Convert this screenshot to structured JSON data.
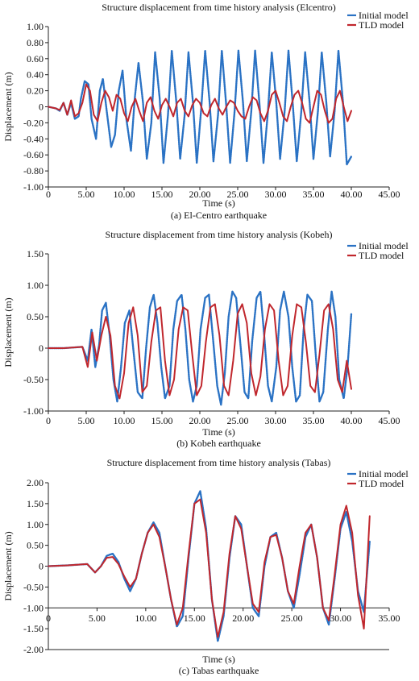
{
  "colors": {
    "initial": "#2a72c4",
    "tld": "#c0272d",
    "axis": "#222222",
    "text": "#111111"
  },
  "chart_data": [
    {
      "type": "line",
      "title": "Structure displacement from time history analysis (Elcentro)",
      "xlabel": "Time (s)",
      "ylabel": "Displacement (m)",
      "caption": "(a) El-Centro earthquake",
      "xlim": [
        0,
        45
      ],
      "ylim": [
        -1.0,
        1.0
      ],
      "xticks": [
        0,
        5,
        10,
        15,
        20,
        25,
        30,
        35,
        40,
        45
      ],
      "xtick_labels": [
        "0",
        "5.00",
        "10.00",
        "15.00",
        "20.00",
        "25.00",
        "30.00",
        "35.00",
        "40.00",
        "45.00"
      ],
      "yticks": [
        -1.0,
        -0.8,
        -0.6,
        -0.4,
        -0.2,
        0,
        0.2,
        0.4,
        0.6,
        0.8,
        1.0
      ],
      "ytick_labels": [
        "-1.00",
        "-0.80",
        "-0.60",
        "-0.40",
        "-0.20",
        "0",
        "0.20",
        "0.40",
        "0.60",
        "0.80",
        "1.00"
      ],
      "xaxis_at": "bottom",
      "legend": "top-right",
      "series": [
        {
          "name": "Initial model",
          "color": "#2a72c4",
          "x": [
            0,
            1,
            1.5,
            2,
            2.5,
            3,
            3.5,
            4,
            4.3,
            4.8,
            5.3,
            5.7,
            6.3,
            6.8,
            7.2,
            7.7,
            8.3,
            8.8,
            9.3,
            9.8,
            10.3,
            10.9,
            11.4,
            11.9,
            12.5,
            13,
            13.6,
            14.1,
            14.7,
            15.2,
            15.8,
            16.3,
            16.9,
            17.4,
            18,
            18.5,
            19.1,
            19.6,
            20.2,
            20.7,
            21.3,
            21.8,
            22.4,
            22.9,
            23.5,
            24,
            24.6,
            25.1,
            25.7,
            26.2,
            26.8,
            27.3,
            27.9,
            28.4,
            29,
            29.5,
            30.1,
            30.6,
            31.2,
            31.7,
            32.3,
            32.8,
            33.4,
            33.9,
            34.5,
            35,
            35.6,
            36.1,
            36.7,
            37.2,
            37.8,
            38.3,
            38.9,
            39.4,
            40
          ],
          "y": [
            0,
            -0.02,
            -0.05,
            0.05,
            -0.1,
            0.05,
            -0.15,
            -0.12,
            0.1,
            0.32,
            0.28,
            -0.15,
            -0.4,
            0.2,
            0.35,
            -0.05,
            -0.5,
            -0.35,
            0.2,
            0.45,
            -0.15,
            -0.55,
            0.1,
            0.55,
            0.05,
            -0.65,
            -0.2,
            0.68,
            0.1,
            -0.7,
            -0.1,
            0.7,
            0.05,
            -0.65,
            -0.1,
            0.68,
            0.05,
            -0.7,
            0,
            0.7,
            0.05,
            -0.68,
            -0.1,
            0.7,
            0,
            -0.7,
            -0.05,
            0.7,
            0.05,
            -0.68,
            -0.05,
            0.7,
            0,
            -0.7,
            -0.05,
            0.68,
            0.05,
            -0.65,
            -0.05,
            0.7,
            0,
            -0.68,
            -0.05,
            0.68,
            0.05,
            -0.65,
            -0.05,
            0.68,
            0.05,
            -0.62,
            -0.05,
            0.7,
            0.05,
            -0.72,
            -0.62
          ]
        },
        {
          "name": "TLD model",
          "color": "#c0272d",
          "x": [
            0,
            1,
            1.5,
            2,
            2.5,
            3,
            3.5,
            4,
            4.5,
            5,
            5.5,
            6,
            6.5,
            7,
            7.5,
            8,
            8.5,
            9,
            9.5,
            10,
            10.5,
            11,
            11.5,
            12,
            12.5,
            13,
            13.5,
            14,
            14.5,
            15,
            15.5,
            16,
            16.5,
            17,
            17.5,
            18,
            18.5,
            19,
            19.5,
            20,
            20.5,
            21,
            21.5,
            22,
            22.5,
            23,
            23.5,
            24,
            24.5,
            25,
            25.5,
            26,
            26.5,
            27,
            27.5,
            28,
            28.5,
            29,
            29.5,
            30,
            30.5,
            31,
            31.5,
            32,
            32.5,
            33,
            33.5,
            34,
            34.5,
            35,
            35.5,
            36,
            36.5,
            37,
            37.5,
            38,
            38.5,
            39,
            39.5,
            40
          ],
          "y": [
            0,
            -0.02,
            -0.04,
            0.05,
            -0.1,
            0.08,
            -0.12,
            -0.08,
            0.05,
            0.28,
            0.2,
            -0.1,
            -0.18,
            0.05,
            0.2,
            0.12,
            -0.05,
            0.15,
            0.1,
            -0.08,
            -0.18,
            0,
            0.1,
            -0.05,
            -0.18,
            0.05,
            0.12,
            -0.05,
            -0.15,
            0.02,
            0.1,
            0,
            -0.12,
            0.05,
            0.1,
            -0.05,
            -0.12,
            0.02,
            0.1,
            0.05,
            -0.08,
            -0.12,
            0.02,
            0.1,
            -0.02,
            -0.1,
            0,
            0.08,
            0.05,
            -0.05,
            -0.12,
            -0.15,
            0,
            0.12,
            0.08,
            -0.08,
            -0.18,
            -0.05,
            0.15,
            0.2,
            0.05,
            -0.12,
            -0.18,
            0,
            0.15,
            0.2,
            0.05,
            -0.15,
            -0.2,
            0,
            0.2,
            0.15,
            -0.05,
            -0.2,
            -0.15,
            0.1,
            0.2,
            0,
            -0.18,
            -0.05
          ]
        }
      ]
    },
    {
      "type": "line",
      "title": "Structure displacement from time history analysis (Kobeh)",
      "xlabel": "Time (s)",
      "ylabel": "Displacement (m)",
      "caption": "(b) Kobeh earthquake",
      "xlim": [
        0,
        45
      ],
      "ylim": [
        -1.0,
        1.5
      ],
      "xticks": [
        0,
        5,
        10,
        15,
        20,
        25,
        30,
        35,
        40,
        45
      ],
      "xtick_labels": [
        "0",
        "5.00",
        "10.00",
        "15.00",
        "20.00",
        "25.00",
        "30.00",
        "35.00",
        "40.00",
        "45.00"
      ],
      "yticks": [
        -1.0,
        -0.5,
        0,
        0.5,
        1.0,
        1.5
      ],
      "ytick_labels": [
        "-1.00",
        "-0.50",
        "0",
        "0.50",
        "1.00",
        "1.50"
      ],
      "xaxis_at": "bottom",
      "legend": "top-right",
      "series": [
        {
          "name": "Initial model",
          "color": "#2a72c4",
          "x": [
            0,
            2,
            4.5,
            5.2,
            5.7,
            6.2,
            6.7,
            7.1,
            7.6,
            8.1,
            8.6,
            9.1,
            9.6,
            10.1,
            10.7,
            11.2,
            11.8,
            12.4,
            12.9,
            13.4,
            13.9,
            14.4,
            14.9,
            15.4,
            16,
            16.5,
            17,
            17.6,
            18.1,
            18.6,
            19.1,
            19.6,
            20.1,
            20.7,
            21.2,
            21.7,
            22.3,
            22.8,
            23.3,
            23.8,
            24.3,
            24.8,
            25.4,
            25.9,
            26.4,
            26.9,
            27.5,
            28,
            28.5,
            29,
            29.5,
            30.1,
            30.6,
            31.1,
            31.7,
            32.2,
            32.7,
            33.2,
            33.7,
            34.2,
            34.8,
            35.3,
            35.8,
            36.3,
            36.9,
            37.4,
            37.9,
            38.4,
            39,
            39.5,
            40
          ],
          "y": [
            0,
            0,
            0.02,
            -0.2,
            0.3,
            -0.3,
            0.05,
            0.6,
            0.72,
            0.2,
            -0.5,
            -0.85,
            -0.3,
            0.4,
            0.6,
            0,
            -0.7,
            -0.8,
            0,
            0.65,
            0.85,
            0.4,
            -0.3,
            -0.8,
            -0.6,
            0.3,
            0.75,
            0.85,
            0.3,
            -0.5,
            -0.85,
            -0.6,
            0.3,
            0.8,
            0.85,
            0.2,
            -0.6,
            -0.9,
            -0.4,
            0.5,
            0.9,
            0.8,
            0,
            -0.7,
            -0.8,
            0.1,
            0.8,
            0.9,
            0.2,
            -0.6,
            -0.85,
            -0.3,
            0.6,
            0.9,
            0.5,
            -0.3,
            -0.85,
            -0.75,
            0.3,
            0.85,
            0.75,
            -0.1,
            -0.85,
            -0.7,
            0.3,
            0.9,
            0.5,
            -0.5,
            -0.8,
            -0.3,
            0.55
          ]
        },
        {
          "name": "TLD model",
          "color": "#c0272d",
          "x": [
            0,
            2,
            4.5,
            5.2,
            5.8,
            6.4,
            7,
            7.6,
            8.2,
            8.8,
            9.4,
            10,
            10.6,
            11.2,
            11.8,
            12.4,
            13,
            13.6,
            14.2,
            14.8,
            15.4,
            16,
            16.6,
            17.2,
            17.8,
            18.4,
            19,
            19.6,
            20.2,
            20.8,
            21.4,
            22,
            22.6,
            23.2,
            23.8,
            24.4,
            25,
            25.6,
            26.2,
            26.8,
            27.4,
            28,
            28.6,
            29.2,
            29.8,
            30.4,
            31,
            31.6,
            32.2,
            32.8,
            33.4,
            34,
            34.6,
            35.2,
            35.8,
            36.4,
            37,
            37.6,
            38.2,
            38.8,
            39.4,
            40
          ],
          "y": [
            0,
            0,
            0.02,
            -0.3,
            0.25,
            -0.2,
            0.2,
            0.5,
            0.2,
            -0.6,
            -0.8,
            -0.4,
            0.4,
            0.65,
            0.2,
            -0.7,
            -0.6,
            0.1,
            0.6,
            0.65,
            -0.2,
            -0.75,
            -0.5,
            0.3,
            0.65,
            0.6,
            -0.1,
            -0.75,
            -0.6,
            0.1,
            0.65,
            0.7,
            0.2,
            -0.6,
            -0.75,
            -0.2,
            0.55,
            0.7,
            0.4,
            -0.4,
            -0.75,
            -0.45,
            0.3,
            0.7,
            0.6,
            -0.2,
            -0.75,
            -0.6,
            0.2,
            0.7,
            0.65,
            0.1,
            -0.6,
            -0.7,
            -0.1,
            0.6,
            0.7,
            0.3,
            -0.5,
            -0.7,
            -0.2,
            -0.65
          ]
        }
      ]
    },
    {
      "type": "line",
      "title": "Structure displacement from time history analysis (Tabas)",
      "xlabel": "Time (s)",
      "ylabel": "Displacement (m)",
      "caption": "(c) Tabas earthquake",
      "xlim": [
        0,
        35
      ],
      "ylim": [
        -2.0,
        2.0
      ],
      "xticks": [
        0,
        5,
        10,
        15,
        20,
        25,
        30,
        35
      ],
      "xtick_labels": [
        "0",
        "5.00",
        "10.00",
        "15.00",
        "20.00",
        "25.00",
        "30.00",
        "35.00"
      ],
      "yticks": [
        -2.0,
        -1.5,
        -1.0,
        -0.5,
        0,
        0.5,
        1.0,
        1.5,
        2.0
      ],
      "ytick_labels": [
        "-2.00",
        "-1.50",
        "-1.00",
        "-0.50",
        "0",
        "0.50",
        "1.00",
        "1.50",
        "2.00"
      ],
      "xaxis_at": -1.0,
      "legend": "top-right",
      "series": [
        {
          "name": "Initial model",
          "color": "#2a72c4",
          "x": [
            0,
            2,
            4,
            4.8,
            5.4,
            6,
            6.6,
            7.2,
            7.8,
            8.4,
            9,
            9.6,
            10.2,
            10.8,
            11.4,
            12,
            12.6,
            13.2,
            13.8,
            14.4,
            15,
            15.6,
            16.2,
            16.8,
            17.4,
            18,
            18.6,
            19.2,
            19.8,
            20.4,
            21,
            21.6,
            22.2,
            22.8,
            23.4,
            24,
            24.6,
            25.2,
            25.8,
            26.4,
            27,
            27.6,
            28.2,
            28.8,
            29.4,
            30,
            30.6,
            31.2,
            31.8,
            32.4,
            33
          ],
          "y": [
            0,
            0.02,
            0.05,
            -0.15,
            0,
            0.25,
            0.3,
            0.1,
            -0.3,
            -0.6,
            -0.3,
            0.3,
            0.8,
            1.05,
            0.8,
            0,
            -0.8,
            -1.45,
            -1.2,
            0.2,
            1.5,
            1.8,
            0.9,
            -0.8,
            -1.8,
            -1.2,
            0.2,
            1.2,
            1.0,
            0,
            -1.0,
            -1.2,
            0,
            0.7,
            0.8,
            0.2,
            -0.6,
            -1.0,
            -0.2,
            0.7,
            1.0,
            0.2,
            -1.0,
            -1.4,
            -0.3,
            0.9,
            1.3,
            0.6,
            -0.6,
            -1.1,
            0.6
          ]
        },
        {
          "name": "TLD model",
          "color": "#c0272d",
          "x": [
            0,
            2,
            4,
            4.8,
            5.4,
            6,
            6.6,
            7.2,
            7.8,
            8.4,
            9,
            9.6,
            10.2,
            10.8,
            11.4,
            12,
            12.6,
            13.2,
            13.8,
            14.4,
            15,
            15.6,
            16.2,
            16.8,
            17.4,
            18,
            18.6,
            19.2,
            19.8,
            20.4,
            21,
            21.6,
            22.2,
            22.8,
            23.4,
            24,
            24.6,
            25.2,
            25.8,
            26.4,
            27,
            27.6,
            28.2,
            28.8,
            29.4,
            30,
            30.6,
            31.2,
            31.8,
            32.4,
            33
          ],
          "y": [
            0,
            0.02,
            0.05,
            -0.15,
            0,
            0.2,
            0.22,
            0.05,
            -0.25,
            -0.5,
            -0.3,
            0.3,
            0.8,
            1.0,
            0.7,
            0,
            -0.8,
            -1.4,
            -1.0,
            0.3,
            1.5,
            1.6,
            0.8,
            -0.8,
            -1.7,
            -1.1,
            0.3,
            1.2,
            0.9,
            0,
            -0.9,
            -1.1,
            0.1,
            0.7,
            0.75,
            0.2,
            -0.6,
            -0.9,
            0,
            0.8,
            1.0,
            0.2,
            -1.0,
            -1.3,
            -0.2,
            1.0,
            1.45,
            0.8,
            -0.7,
            -1.5,
            1.2
          ]
        }
      ]
    }
  ]
}
